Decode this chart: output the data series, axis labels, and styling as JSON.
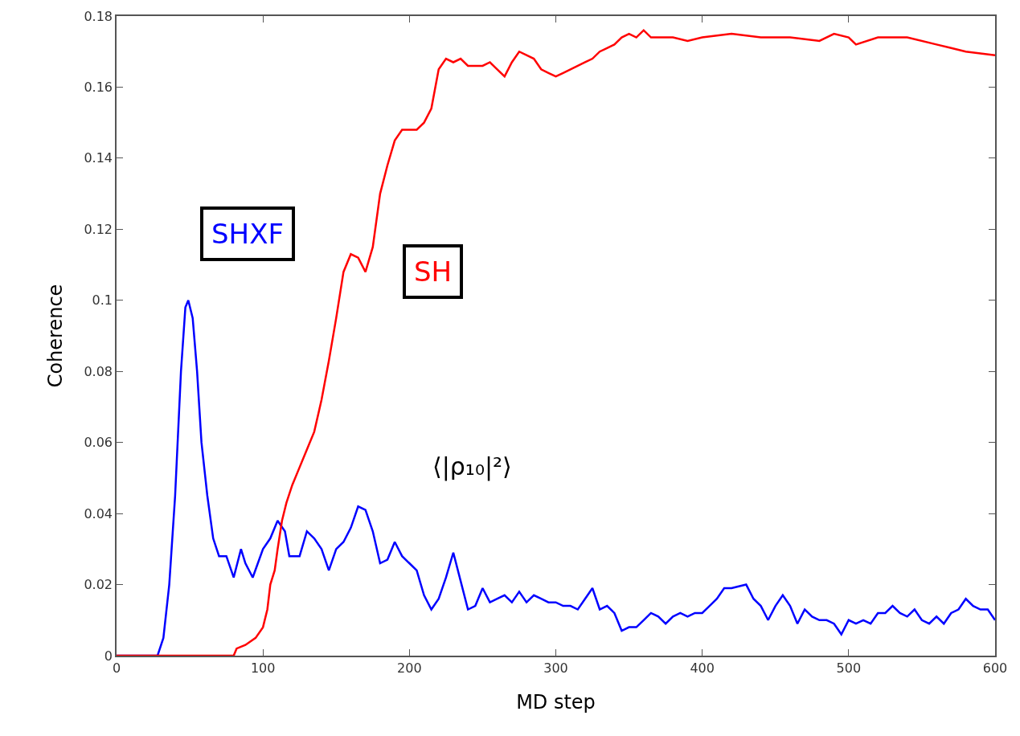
{
  "chart_data": {
    "type": "line",
    "xlabel": "MD step",
    "ylabel": "Coherence",
    "annotations": [
      "⟨|ρ₁₀|²⟩"
    ],
    "series": [
      {
        "name": "SHXF",
        "color": "#0000ff",
        "x": [
          0,
          28,
          32,
          36,
          40,
          44,
          47,
          49,
          52,
          55,
          58,
          62,
          66,
          70,
          75,
          80,
          85,
          88,
          93,
          100,
          105,
          110,
          115,
          118,
          125,
          130,
          135,
          140,
          145,
          150,
          155,
          160,
          165,
          170,
          175,
          180,
          185,
          190,
          195,
          200,
          205,
          210,
          215,
          220,
          225,
          230,
          235,
          240,
          245,
          250,
          255,
          260,
          265,
          270,
          275,
          280,
          285,
          290,
          295,
          300,
          305,
          310,
          315,
          320,
          325,
          330,
          335,
          340,
          345,
          350,
          355,
          360,
          365,
          370,
          375,
          380,
          385,
          390,
          395,
          400,
          405,
          410,
          415,
          420,
          430,
          435,
          440,
          445,
          450,
          455,
          460,
          465,
          470,
          475,
          480,
          485,
          490,
          495,
          500,
          505,
          510,
          515,
          520,
          525,
          530,
          535,
          540,
          545,
          550,
          555,
          560,
          565,
          570,
          575,
          580,
          585,
          590,
          595,
          600
        ],
        "values": [
          0,
          0,
          0.005,
          0.02,
          0.045,
          0.08,
          0.098,
          0.1,
          0.095,
          0.08,
          0.06,
          0.045,
          0.033,
          0.028,
          0.028,
          0.022,
          0.03,
          0.026,
          0.022,
          0.03,
          0.033,
          0.038,
          0.035,
          0.028,
          0.028,
          0.035,
          0.033,
          0.03,
          0.024,
          0.03,
          0.032,
          0.036,
          0.042,
          0.041,
          0.035,
          0.026,
          0.027,
          0.032,
          0.028,
          0.026,
          0.024,
          0.017,
          0.013,
          0.016,
          0.022,
          0.029,
          0.021,
          0.013,
          0.014,
          0.019,
          0.015,
          0.016,
          0.017,
          0.015,
          0.018,
          0.015,
          0.017,
          0.016,
          0.015,
          0.015,
          0.014,
          0.014,
          0.013,
          0.016,
          0.019,
          0.013,
          0.014,
          0.012,
          0.007,
          0.008,
          0.008,
          0.01,
          0.012,
          0.011,
          0.009,
          0.011,
          0.012,
          0.011,
          0.012,
          0.012,
          0.014,
          0.016,
          0.019,
          0.019,
          0.02,
          0.016,
          0.014,
          0.01,
          0.014,
          0.017,
          0.014,
          0.009,
          0.013,
          0.011,
          0.01,
          0.01,
          0.009,
          0.006,
          0.01,
          0.009,
          0.01,
          0.009,
          0.012,
          0.012,
          0.014,
          0.012,
          0.011,
          0.013,
          0.01,
          0.009,
          0.011,
          0.009,
          0.012,
          0.013,
          0.016,
          0.014,
          0.013,
          0.013,
          0.01
        ]
      },
      {
        "name": "SH",
        "color": "#ff0000",
        "x": [
          0,
          80,
          82,
          88,
          95,
          100,
          103,
          105,
          108,
          110,
          113,
          116,
          120,
          125,
          130,
          135,
          140,
          145,
          150,
          155,
          160,
          165,
          170,
          175,
          180,
          185,
          190,
          195,
          200,
          205,
          210,
          215,
          220,
          225,
          230,
          235,
          240,
          245,
          250,
          255,
          260,
          265,
          270,
          275,
          280,
          285,
          290,
          295,
          300,
          305,
          310,
          315,
          320,
          325,
          330,
          335,
          340,
          345,
          350,
          355,
          360,
          365,
          380,
          390,
          400,
          420,
          440,
          460,
          480,
          490,
          500,
          505,
          520,
          540,
          560,
          570,
          580,
          600
        ],
        "values": [
          0,
          0,
          0.002,
          0.003,
          0.005,
          0.008,
          0.013,
          0.02,
          0.024,
          0.03,
          0.038,
          0.043,
          0.048,
          0.053,
          0.058,
          0.063,
          0.072,
          0.083,
          0.095,
          0.108,
          0.113,
          0.112,
          0.108,
          0.115,
          0.13,
          0.138,
          0.145,
          0.148,
          0.148,
          0.148,
          0.15,
          0.154,
          0.165,
          0.168,
          0.167,
          0.168,
          0.166,
          0.166,
          0.166,
          0.167,
          0.165,
          0.163,
          0.167,
          0.17,
          0.169,
          0.168,
          0.165,
          0.164,
          0.163,
          0.164,
          0.165,
          0.166,
          0.167,
          0.168,
          0.17,
          0.171,
          0.172,
          0.174,
          0.175,
          0.174,
          0.176,
          0.174,
          0.174,
          0.173,
          0.174,
          0.175,
          0.174,
          0.174,
          0.173,
          0.175,
          0.174,
          0.172,
          0.174,
          0.174,
          0.172,
          0.171,
          0.17,
          0.169
        ]
      }
    ],
    "xlim": [
      0,
      600
    ],
    "xticks": [
      0,
      100,
      200,
      300,
      400,
      500,
      600
    ],
    "ylim": [
      0,
      0.18
    ],
    "yticks": [
      0,
      0.02,
      0.04,
      0.06,
      0.08,
      0.1,
      0.12,
      0.14,
      0.16,
      0.18
    ],
    "legend": false
  }
}
